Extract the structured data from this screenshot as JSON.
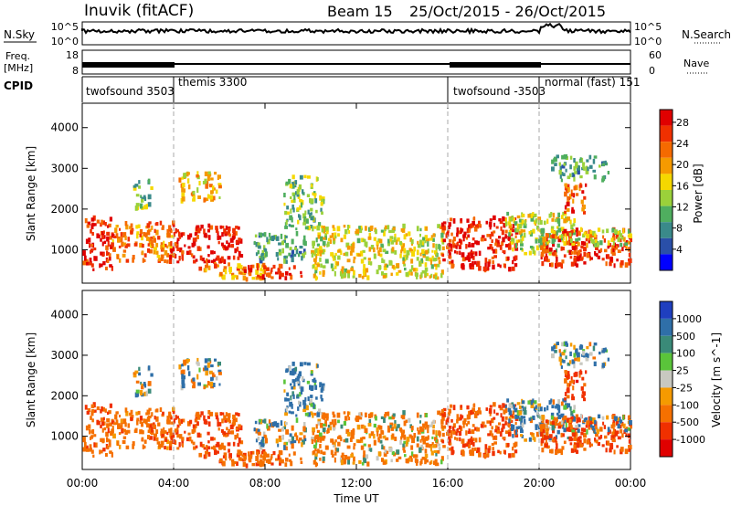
{
  "header": {
    "radar": "Inuvik (fitACF)",
    "beam": "Beam 15",
    "dates": "25/Oct/2015 - 26/Oct/2015"
  },
  "strip_nsky": {
    "left_label": "N.Sky",
    "right_label": "N.Search",
    "left_top": "10^5",
    "left_bottom": "10^0",
    "right_top": "10^5",
    "right_bottom": "10^0"
  },
  "strip_freq": {
    "left_label_1": "Freq.",
    "left_label_2": "[MHz]",
    "right_label": "Nave",
    "left_top": "18",
    "left_bottom": "8",
    "right_top": "60",
    "right_bottom": "0"
  },
  "cpid": {
    "label": "CPID",
    "segments": [
      {
        "start_hour": 0,
        "end_hour": 4,
        "label": "twofsound 3503"
      },
      {
        "start_hour": 4,
        "end_hour": 16,
        "label": "themis 3300"
      },
      {
        "start_hour": 16,
        "end_hour": 20,
        "label": "twofsound -3503"
      },
      {
        "start_hour": 20,
        "end_hour": 24,
        "label": "normal (fast) 151"
      }
    ]
  },
  "panel_power": {
    "ylabel": "Slant Range [km]",
    "yticks": [
      "1000",
      "2000",
      "3000",
      "4000"
    ],
    "colorbar_label": "Power [dB]",
    "colorbar_ticks": [
      "4",
      "8",
      "12",
      "16",
      "20",
      "24",
      "28"
    ],
    "colors": [
      "#0000ff",
      "#2a4fa8",
      "#3a8a8a",
      "#4fae5f",
      "#9bd13a",
      "#f5d800",
      "#f59a00",
      "#f56a00",
      "#f03000",
      "#e00000"
    ]
  },
  "panel_velocity": {
    "ylabel": "Slant Range [km]",
    "yticks": [
      "1000",
      "2000",
      "3000",
      "4000"
    ],
    "colorbar_label": "Velocity [m s^-1]",
    "colorbar_ticks": [
      "1000",
      "500",
      "100",
      "25",
      "-25",
      "-100",
      "-500",
      "-1000"
    ],
    "colors": [
      "#1f3fbf",
      "#2f6fa8",
      "#3a8a78",
      "#5ac43a",
      "#c8c8c0",
      "#f59a00",
      "#f57000",
      "#f03000",
      "#e00000"
    ]
  },
  "xaxis": {
    "label": "Time UT",
    "ticks": [
      "00:00",
      "04:00",
      "08:00",
      "12:00",
      "16:00",
      "20:00",
      "00:00"
    ]
  },
  "chart_data": {
    "type": "heatmap",
    "x_range_hours": [
      0,
      24
    ],
    "y_range_km": [
      180,
      4600
    ],
    "cpid_boundaries_hours": [
      4,
      16,
      20
    ],
    "power_scale_db": [
      0,
      30
    ],
    "velocity_scale_ms": [
      -1000,
      1000
    ],
    "echo_regions": [
      {
        "t0": 0.0,
        "t1": 1.3,
        "r0": 500,
        "r1": 1800,
        "power": 27,
        "velocity": -400
      },
      {
        "t0": 1.3,
        "t1": 4.0,
        "r0": 700,
        "r1": 1700,
        "power": 22,
        "velocity": -300
      },
      {
        "t0": 2.2,
        "t1": 3.0,
        "r0": 2000,
        "r1": 2700,
        "power": 12,
        "velocity": 60
      },
      {
        "t0": 3.8,
        "t1": 6.9,
        "r0": 700,
        "r1": 1600,
        "power": 28,
        "velocity": -500
      },
      {
        "t0": 4.2,
        "t1": 6.0,
        "r0": 2200,
        "r1": 2900,
        "power": 18,
        "velocity": 0
      },
      {
        "t0": 5.0,
        "t1": 8.0,
        "r0": 250,
        "r1": 650,
        "power": 20,
        "velocity": -450
      },
      {
        "t0": 6.8,
        "t1": 9.6,
        "r0": 300,
        "r1": 600,
        "power": 26,
        "velocity": -350
      },
      {
        "t0": 7.5,
        "t1": 9.8,
        "r0": 700,
        "r1": 1400,
        "power": 10,
        "velocity": 10
      },
      {
        "t0": 8.8,
        "t1": 10.5,
        "r0": 1500,
        "r1": 2800,
        "power": 12,
        "velocity": 150
      },
      {
        "t0": 10.0,
        "t1": 15.8,
        "r0": 300,
        "r1": 1600,
        "power": 16,
        "velocity": -150
      },
      {
        "t0": 15.7,
        "t1": 19.0,
        "r0": 500,
        "r1": 1800,
        "power": 27,
        "velocity": -450
      },
      {
        "t0": 18.5,
        "t1": 21.5,
        "r0": 900,
        "r1": 1900,
        "power": 14,
        "velocity": 100
      },
      {
        "t0": 20.0,
        "t1": 24.0,
        "r0": 600,
        "r1": 1500,
        "power": 26,
        "velocity": -550
      },
      {
        "t0": 20.0,
        "t1": 24.0,
        "r0": 1100,
        "r1": 1500,
        "power": 14,
        "velocity": 0
      },
      {
        "t0": 21.0,
        "t1": 22.0,
        "r0": 1900,
        "r1": 2700,
        "power": 24,
        "velocity": -600
      },
      {
        "t0": 20.5,
        "t1": 23.0,
        "r0": 2700,
        "r1": 3300,
        "power": 10,
        "velocity": 120
      }
    ]
  }
}
